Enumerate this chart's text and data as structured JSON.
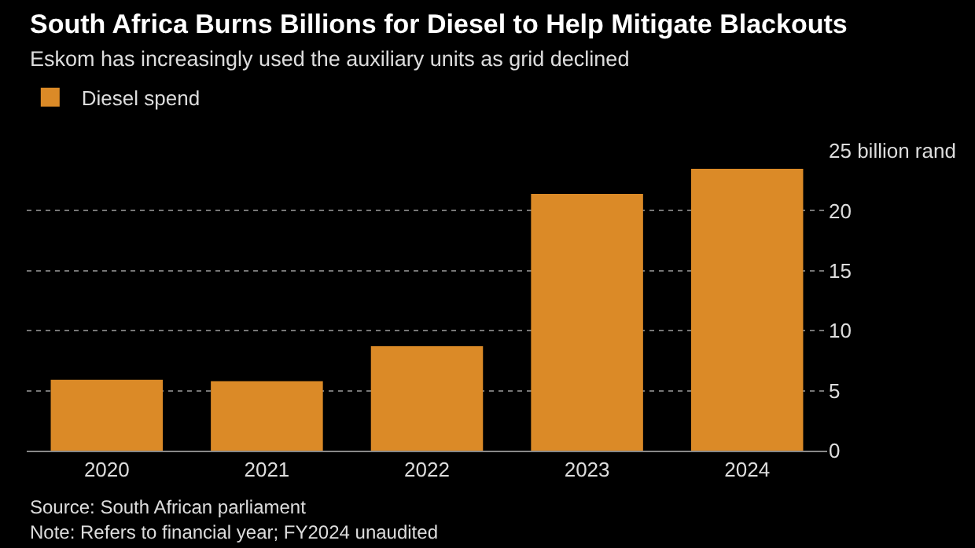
{
  "chart_data": {
    "type": "bar",
    "title": "South Africa Burns Billions for Diesel to Help Mitigate Blackouts",
    "subtitle": "Eskom has increasingly used the auxiliary units as grid declined",
    "categories": [
      "2020",
      "2021",
      "2022",
      "2023",
      "2024"
    ],
    "series": [
      {
        "name": "Diesel spend",
        "color": "#db8a27",
        "values": [
          5.9,
          5.8,
          8.7,
          21.4,
          23.5
        ]
      }
    ],
    "ylim": [
      0,
      25
    ],
    "yticks": [
      0,
      5,
      10,
      15,
      20,
      {
        "value": 25,
        "label": "25 billion rand"
      }
    ],
    "grid": "y",
    "legend": "top left",
    "annotations": [
      "Source: South African parliament",
      "Note: Refers to financial year; FY2024 unaudited"
    ]
  }
}
